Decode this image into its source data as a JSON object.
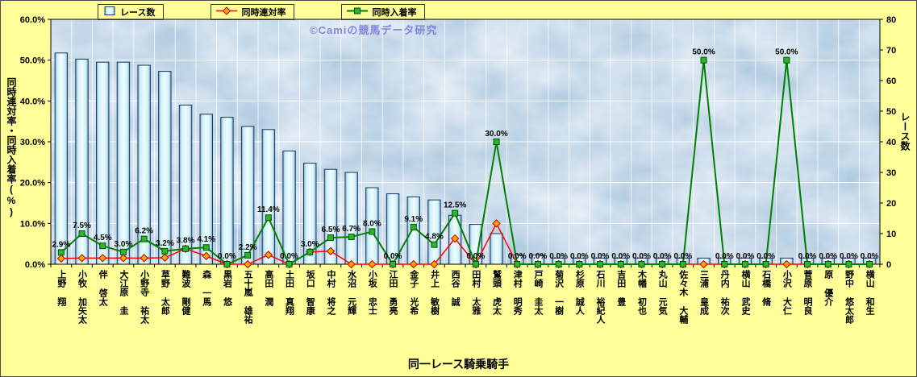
{
  "watermark": "©Camiの競馬データ研究",
  "legend": {
    "items": [
      {
        "label": "レース数"
      },
      {
        "label": "同時連対率"
      },
      {
        "label": "同時入着率"
      }
    ]
  },
  "axes": {
    "left_title": "同時連対率・同時入着率(%)",
    "right_title": "レース数",
    "x_title": "同一レース騎乗騎手"
  },
  "chart_data": {
    "type": "bar",
    "subtype": "combo-bar-and-lines",
    "legend_position": "top",
    "grid": true,
    "categories": [
      "上野 翔",
      "小牧 加矢太",
      "伴 啓太",
      "大江原 圭",
      "小野寺 祐太",
      "草野 太郎",
      "難波 剛健",
      "森 一馬",
      "黒岩 悠",
      "五十嵐 雄祐",
      "高田 潤",
      "土田 真翔",
      "坂口 智康",
      "中村 将之",
      "水沼 元輝",
      "小坂 忠士",
      "江田 勇亮",
      "金子 光希",
      "井上 敏樹",
      "西谷 誠",
      "田村 太雅",
      "鷲頭 虎太",
      "津村 明秀",
      "戸崎 圭太",
      "菊沢 一樹",
      "杉原 誠人",
      "石川 裕紀人",
      "吉田 豊",
      "木幡 初也",
      "丸山 元気",
      "佐々木 大輔",
      "三浦 皇成",
      "丹内 祐次",
      "横山 武史",
      "石橋 脩",
      "小沢 大仁",
      "菅原 明良",
      "原 優介",
      "野中 悠太郎",
      "横山 和生"
    ],
    "series": [
      {
        "name": "レース数",
        "type": "bar",
        "axis": "right",
        "values": [
          69,
          67,
          66,
          66,
          65,
          63,
          52,
          49,
          48,
          45,
          44,
          37,
          33,
          31,
          30,
          25,
          23,
          22,
          21,
          16,
          13,
          10,
          3,
          3,
          2,
          2,
          2,
          2,
          2,
          2,
          2,
          2,
          2,
          2,
          2,
          2,
          2,
          2,
          2,
          2
        ]
      },
      {
        "name": "同時連対率",
        "type": "line",
        "axis": "left",
        "marker": "diamond",
        "values": [
          1.4,
          1.5,
          1.5,
          1.5,
          1.5,
          1.6,
          3.8,
          2.0,
          0,
          0,
          2.3,
          0,
          3.0,
          3.2,
          0,
          0,
          0,
          0,
          0,
          6.3,
          0,
          10.0,
          0,
          0,
          0,
          0,
          0,
          0,
          0,
          0,
          0,
          0,
          0,
          0,
          0,
          0,
          0,
          0,
          0,
          0
        ]
      },
      {
        "name": "同時入着率",
        "type": "line",
        "axis": "left",
        "marker": "square",
        "data_labels": true,
        "values": [
          2.9,
          7.5,
          4.5,
          3.0,
          6.2,
          3.2,
          3.8,
          4.1,
          0,
          2.2,
          11.4,
          0,
          3.0,
          6.5,
          6.7,
          8.0,
          0,
          9.1,
          4.8,
          12.5,
          0,
          30.0,
          0,
          0,
          0,
          0,
          0,
          0,
          0,
          0,
          0,
          50.0,
          0,
          0,
          0,
          50.0,
          0,
          0,
          0,
          0
        ]
      }
    ],
    "left_axis": {
      "min": 0,
      "max": 60,
      "step": 10,
      "decimals": 1,
      "suffix": "%"
    },
    "right_axis": {
      "min": 0,
      "max": 80,
      "step": 10
    }
  },
  "colors": {
    "background": "#FFFF99",
    "plot_fill": "#9EC1DA",
    "grid": "#FFFFFF",
    "bar_border": "#17375E",
    "red_line": "#FF0000",
    "red_marker_fill": "#FFA500",
    "red_marker_stroke": "#C00000",
    "green_line": "#008000",
    "green_marker_fill": "#2DB52D",
    "green_marker_stroke": "#005000",
    "watermark": "#7B7BD6"
  }
}
